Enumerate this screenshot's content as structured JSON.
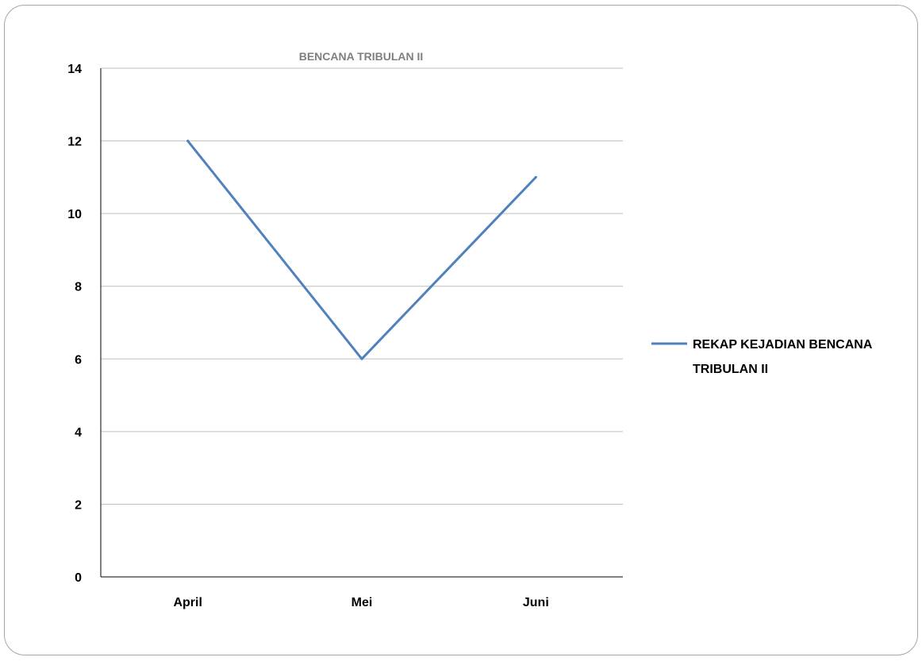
{
  "chart_data": {
    "type": "line",
    "title": "BENCANA TRIBULAN II",
    "categories": [
      "April",
      "Mei",
      "Juni"
    ],
    "series": [
      {
        "name": "REKAP KEJADIAN BENCANA TRIBULAN II",
        "name_lines": [
          "REKAP KEJADIAN BENCANA",
          "TRIBULAN II"
        ],
        "values": [
          12,
          6,
          11
        ],
        "color": "#4f81bd"
      }
    ],
    "yticks": [
      "0",
      "2",
      "4",
      "6",
      "8",
      "10",
      "12",
      "14"
    ],
    "ylim": [
      0,
      14
    ],
    "grid": true,
    "legend_position": "right"
  }
}
